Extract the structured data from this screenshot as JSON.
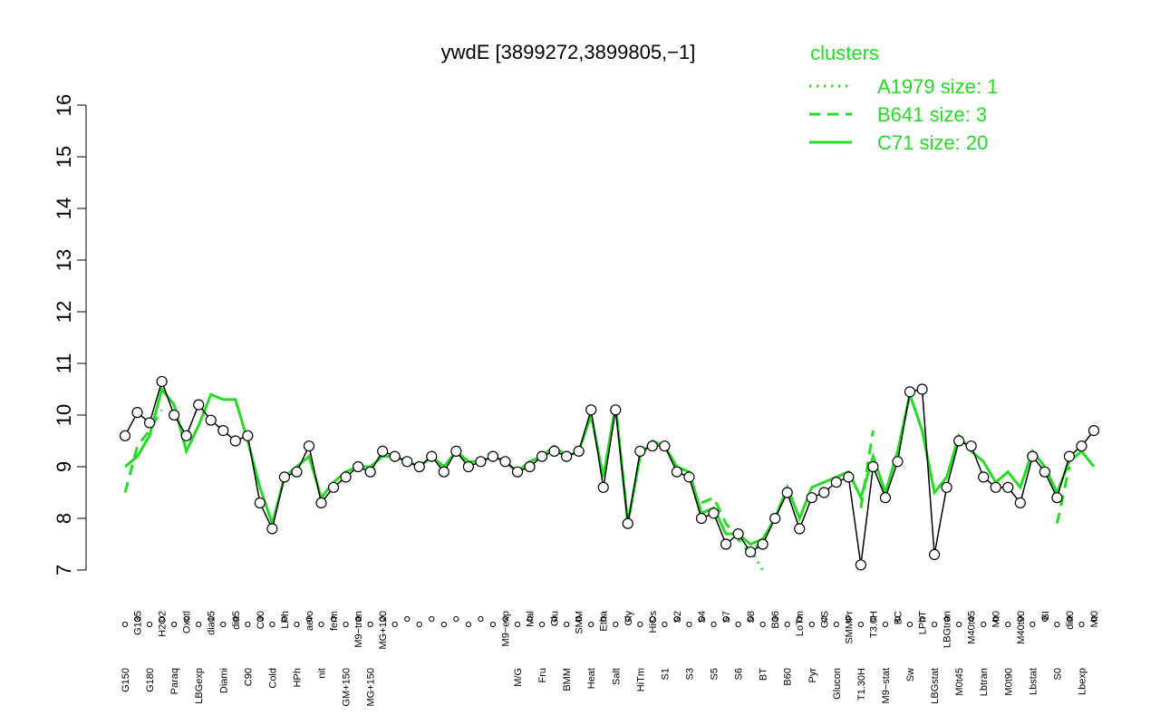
{
  "chart_data": {
    "type": "line",
    "title": "ywdE [3899272,3899805,−1]",
    "legend_title": "clusters",
    "legend_position": "top-right",
    "categories": [
      "G150",
      "G135",
      "G180",
      "H2O2",
      "Paraq",
      "Oxctl",
      "LBGexp",
      "dia15",
      "Diami",
      "dia5",
      "C90",
      "C30",
      "Cold",
      "LPh",
      "HPh",
      "aero",
      "nit",
      "ferm",
      "GM+150",
      "M9−tran",
      "MG+150",
      "MG+120",
      null,
      null,
      null,
      null,
      null,
      null,
      null,
      null,
      null,
      "M9−exp",
      "M/G",
      "Mal",
      "Fru",
      "Glu",
      "BMM",
      "SMM",
      "Heat",
      "Etha",
      "Salt",
      "Gly",
      "HiTm",
      "HiOs",
      "S1",
      "S2",
      "S3",
      "S4",
      "S5",
      "S7",
      "S6",
      "S8",
      "BT",
      "B36",
      "B60",
      "LoTm",
      "Pyr",
      "G/S",
      "Glucon",
      "SMMPr",
      "T1.30H",
      "T3.0H",
      "M9−stat",
      "BC",
      "Sw",
      "LPhT",
      "LBGstat",
      "LBGtran",
      "M0t45",
      "M40t45",
      "Lbtran",
      "Mt0",
      "M0t90",
      "M40t90",
      "Lbstat",
      "BI",
      "S0",
      "dia0",
      "Lbexp",
      "Mt0"
    ],
    "values": [
      9.6,
      10.05,
      9.85,
      10.65,
      10.0,
      9.6,
      10.2,
      9.9,
      9.7,
      9.5,
      9.6,
      8.3,
      7.8,
      8.8,
      8.9,
      9.4,
      8.3,
      8.6,
      8.8,
      9.0,
      8.9,
      9.3,
      9.2,
      9.1,
      9.0,
      9.2,
      8.9,
      9.3,
      9.0,
      9.1,
      9.2,
      9.1,
      8.9,
      9.0,
      9.2,
      9.3,
      9.2,
      9.3,
      10.1,
      8.6,
      10.1,
      7.9,
      9.3,
      9.4,
      9.4,
      8.9,
      8.8,
      8.0,
      8.1,
      7.5,
      7.7,
      7.35,
      7.5,
      8.0,
      8.5,
      7.8,
      8.4,
      8.5,
      8.7,
      8.8,
      7.1,
      9.0,
      8.4,
      9.1,
      10.45,
      10.5,
      7.3,
      8.6,
      9.5,
      9.4,
      8.8,
      8.6,
      8.6,
      8.3,
      9.2,
      8.9,
      8.4,
      9.2,
      9.4,
      9.7
    ],
    "color": "#000000",
    "series": [
      {
        "name": "A1979 size: 1",
        "color": "#22dd22",
        "dash": "dotted",
        "values": [
          null,
          null,
          null,
          null,
          null,
          null,
          null,
          null,
          null,
          null,
          null,
          null,
          null,
          null,
          null,
          null,
          null,
          null,
          null,
          null,
          null,
          null,
          null,
          null,
          null,
          null,
          null,
          null,
          null,
          null,
          null,
          null,
          null,
          null,
          null,
          null,
          null,
          null,
          null,
          null,
          null,
          null,
          null,
          null,
          null,
          null,
          null,
          null,
          null,
          null,
          null,
          7.4,
          7.0,
          null,
          null,
          null,
          null,
          null,
          null,
          null,
          null,
          null,
          null,
          null,
          null,
          null,
          null,
          null,
          null,
          null,
          null,
          null,
          null,
          null,
          null,
          null,
          null,
          null,
          null,
          null
        ]
      },
      {
        "name": "B641 size: 3",
        "color": "#22dd22",
        "dash": "dashed",
        "values": [
          8.5,
          9.4,
          9.7,
          10.1,
          null,
          null,
          null,
          null,
          null,
          null,
          null,
          null,
          null,
          null,
          null,
          null,
          null,
          null,
          null,
          null,
          null,
          null,
          null,
          null,
          null,
          null,
          null,
          null,
          null,
          null,
          null,
          null,
          null,
          null,
          null,
          null,
          null,
          null,
          null,
          null,
          null,
          null,
          null,
          null,
          null,
          null,
          null,
          8.3,
          8.4,
          7.9,
          7.6,
          7.3,
          7.6,
          null,
          null,
          null,
          null,
          null,
          null,
          null,
          8.2,
          9.7,
          null,
          null,
          null,
          null,
          null,
          null,
          null,
          null,
          null,
          null,
          null,
          null,
          null,
          null,
          7.9,
          9.0,
          null,
          null
        ]
      },
      {
        "name": "C71 size: 20",
        "color": "#22dd22",
        "dash": "solid",
        "values": [
          9.0,
          9.2,
          9.6,
          10.5,
          10.2,
          9.3,
          9.8,
          10.4,
          10.3,
          10.3,
          9.5,
          8.6,
          7.9,
          8.8,
          9.0,
          9.2,
          8.4,
          8.7,
          8.9,
          9.0,
          9.0,
          9.2,
          9.2,
          9.1,
          9.0,
          9.2,
          9.0,
          9.3,
          9.1,
          9.1,
          9.2,
          9.1,
          8.9,
          9.1,
          9.2,
          9.4,
          9.2,
          9.3,
          10.0,
          8.8,
          10.2,
          7.9,
          9.2,
          9.5,
          9.4,
          9.0,
          8.9,
          8.1,
          8.2,
          7.7,
          7.7,
          7.5,
          7.6,
          8.0,
          8.6,
          8.0,
          8.6,
          8.7,
          8.8,
          8.9,
          8.4,
          9.2,
          8.5,
          9.3,
          10.4,
          9.7,
          8.5,
          8.8,
          9.6,
          9.3,
          9.1,
          8.7,
          8.9,
          8.6,
          9.3,
          9.0,
          8.5,
          9.1,
          9.3,
          9.0
        ]
      }
    ],
    "ylim": [
      7,
      16
    ],
    "yticks": [
      7,
      8,
      9,
      10,
      11,
      12,
      13,
      14,
      15,
      16
    ],
    "grid": false
  }
}
